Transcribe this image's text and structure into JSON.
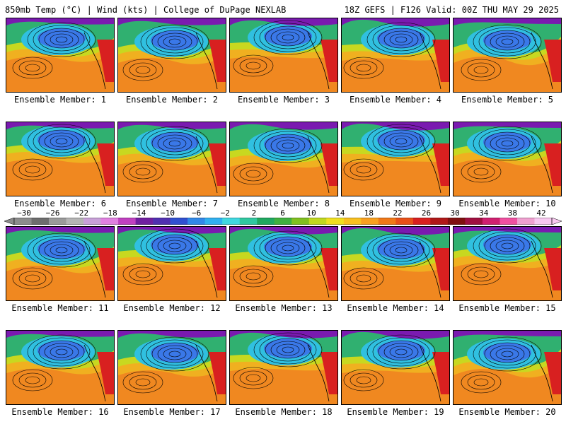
{
  "header": {
    "left": "850mb Temp (°C) | Wind (kts) | College of DuPage NEXLAB",
    "right": "18Z GEFS | F126 Valid: 00Z THU MAY 29 2025"
  },
  "members": [
    {
      "label": "Ensemble Member: 1"
    },
    {
      "label": "Ensemble Member: 2"
    },
    {
      "label": "Ensemble Member: 3"
    },
    {
      "label": "Ensemble Member: 4"
    },
    {
      "label": "Ensemble Member: 5"
    },
    {
      "label": "Ensemble Member: 6"
    },
    {
      "label": "Ensemble Member: 7"
    },
    {
      "label": "Ensemble Member: 8"
    },
    {
      "label": "Ensemble Member: 9"
    },
    {
      "label": "Ensemble Member: 10"
    },
    {
      "label": "Ensemble Member: 11"
    },
    {
      "label": "Ensemble Member: 12"
    },
    {
      "label": "Ensemble Member: 13"
    },
    {
      "label": "Ensemble Member: 14"
    },
    {
      "label": "Ensemble Member: 15"
    },
    {
      "label": "Ensemble Member: 16"
    },
    {
      "label": "Ensemble Member: 17"
    },
    {
      "label": "Ensemble Member: 18"
    },
    {
      "label": "Ensemble Member: 19"
    },
    {
      "label": "Ensemble Member: 20"
    }
  ],
  "colorbar": {
    "tick_labels": [
      "−30",
      "−26",
      "−22",
      "−18",
      "−14",
      "−10",
      "−6",
      "−2",
      "2",
      "6",
      "10",
      "14",
      "18",
      "22",
      "26",
      "30",
      "34",
      "38",
      "42"
    ],
    "colors": [
      "#8c8c8c",
      "#6e6e6e",
      "#9a9a9a",
      "#b4b4b4",
      "#c8a0d8",
      "#e080e0",
      "#c040c0",
      "#7020a0",
      "#5030b0",
      "#3050d0",
      "#3088e8",
      "#30b0f0",
      "#40d8e0",
      "#30c8a0",
      "#20a860",
      "#40b040",
      "#80c020",
      "#c0d820",
      "#f0e020",
      "#f8c020",
      "#f8a020",
      "#f07818",
      "#e85018",
      "#d82020",
      "#b01818",
      "#801010",
      "#a01040",
      "#d02070",
      "#f050a0",
      "#f0a0d0",
      "#f8c8f0"
    ]
  },
  "map_colors": {
    "north": "#7a1ab0",
    "cold": "#3a78e8",
    "cool": "#30c0e0",
    "mild": "#30b070",
    "temperate": "#c8d820",
    "warm": "#f0b020",
    "hot": "#f08820",
    "coast": "#d82020"
  }
}
